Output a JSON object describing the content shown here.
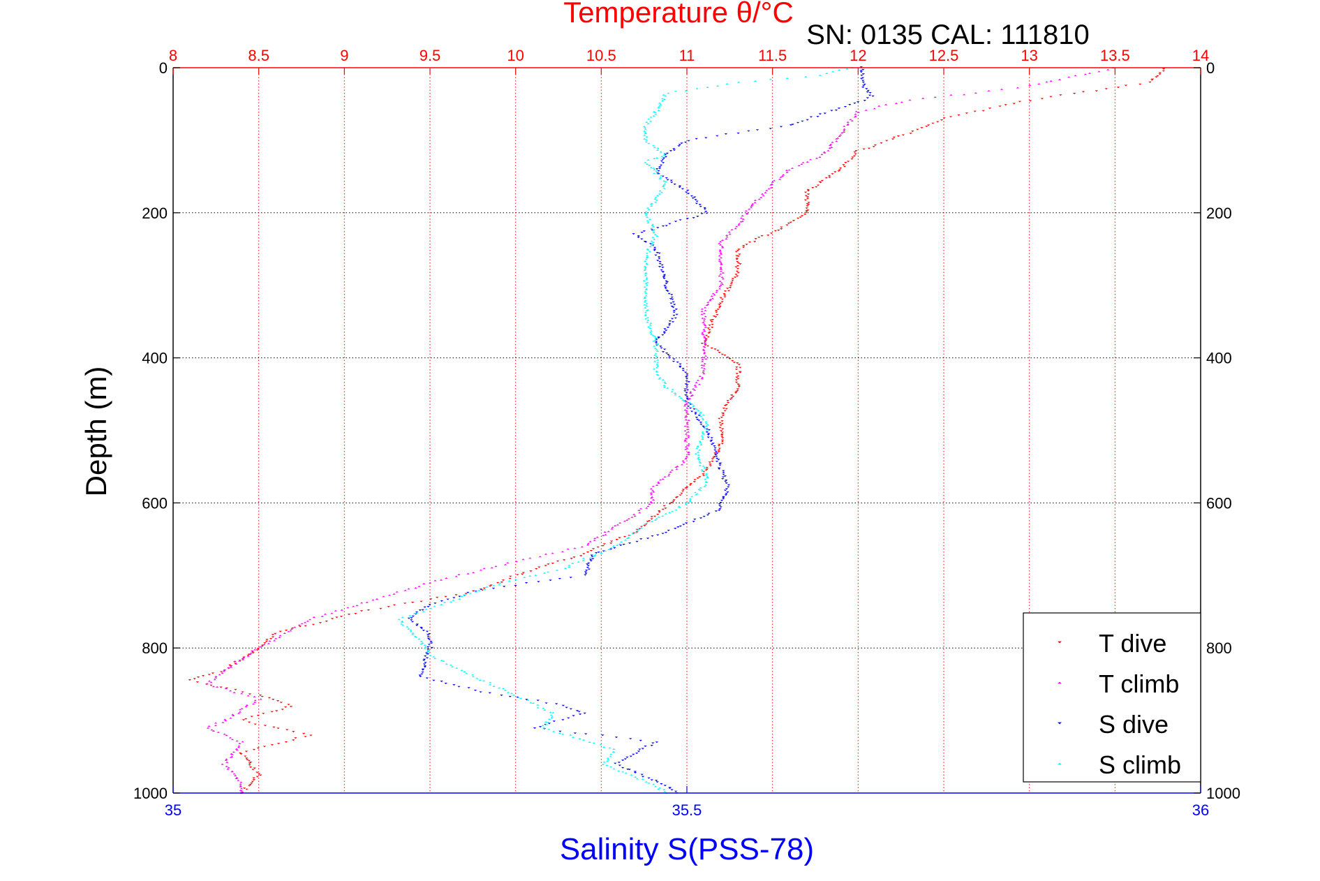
{
  "chart_data": {
    "type": "scatter",
    "title_top": "Temperature θ/°C",
    "subtitle": "SN: 0135  CAL: 111810",
    "ylabel": "Depth (m)",
    "xlabel_bottom": "Salinity S(PSS-78)",
    "y_axis": {
      "range": [
        0,
        1000
      ],
      "reversed": true,
      "ticks": [
        0,
        200,
        400,
        600,
        800,
        1000
      ]
    },
    "x_top": {
      "quantity": "Temperature",
      "range": [
        8,
        14
      ],
      "ticks": [
        8,
        8.5,
        9,
        9.5,
        10,
        10.5,
        11,
        11.5,
        12,
        12.5,
        13,
        13.5,
        14
      ],
      "color": "#ff0000"
    },
    "x_bottom": {
      "quantity": "Salinity",
      "range": [
        35,
        36
      ],
      "ticks": [
        35,
        35.5,
        36
      ],
      "color": "#0000ff"
    },
    "grid": true,
    "legend_position": "bottom-right",
    "series": [
      {
        "name": "T dive",
        "axis": "top",
        "color": "#ff0000",
        "marker": "triangle-down",
        "points": [
          [
            13.8,
            0
          ],
          [
            13.7,
            20
          ],
          [
            13.0,
            45
          ],
          [
            12.5,
            70
          ],
          [
            12.3,
            90
          ],
          [
            12.0,
            115
          ],
          [
            11.9,
            140
          ],
          [
            11.7,
            170
          ],
          [
            11.7,
            200
          ],
          [
            11.6,
            215
          ],
          [
            11.3,
            250
          ],
          [
            11.3,
            280
          ],
          [
            11.2,
            320
          ],
          [
            11.1,
            380
          ],
          [
            11.3,
            410
          ],
          [
            11.3,
            440
          ],
          [
            11.2,
            480
          ],
          [
            11.2,
            520
          ],
          [
            11.1,
            560
          ],
          [
            10.9,
            600
          ],
          [
            10.7,
            640
          ],
          [
            10.4,
            670
          ],
          [
            10.0,
            700
          ],
          [
            9.8,
            720
          ],
          [
            9.1,
            750
          ],
          [
            8.6,
            780
          ],
          [
            8.5,
            800
          ],
          [
            8.3,
            830
          ],
          [
            8.1,
            845
          ],
          [
            8.5,
            865
          ],
          [
            8.7,
            880
          ],
          [
            8.4,
            900
          ],
          [
            8.8,
            920
          ],
          [
            8.4,
            945
          ],
          [
            8.5,
            975
          ],
          [
            8.4,
            1000
          ]
        ]
      },
      {
        "name": "T climb",
        "axis": "top",
        "color": "#ff00ff",
        "marker": "triangle-up",
        "points": [
          [
            13.5,
            0
          ],
          [
            13.0,
            25
          ],
          [
            12.3,
            45
          ],
          [
            12.0,
            60
          ],
          [
            11.9,
            90
          ],
          [
            11.8,
            120
          ],
          [
            11.6,
            140
          ],
          [
            11.5,
            160
          ],
          [
            11.4,
            185
          ],
          [
            11.3,
            215
          ],
          [
            11.2,
            240
          ],
          [
            11.2,
            270
          ],
          [
            11.2,
            300
          ],
          [
            11.1,
            330
          ],
          [
            11.1,
            360
          ],
          [
            11.1,
            390
          ],
          [
            11.1,
            420
          ],
          [
            11.0,
            460
          ],
          [
            11.0,
            500
          ],
          [
            11.0,
            540
          ],
          [
            10.8,
            580
          ],
          [
            10.8,
            600
          ],
          [
            10.6,
            630
          ],
          [
            10.4,
            660
          ],
          [
            10.0,
            680
          ],
          [
            9.5,
            710
          ],
          [
            8.8,
            760
          ],
          [
            8.5,
            800
          ],
          [
            8.3,
            830
          ],
          [
            8.2,
            850
          ],
          [
            8.5,
            870
          ],
          [
            8.3,
            900
          ],
          [
            8.2,
            910
          ],
          [
            8.4,
            930
          ],
          [
            8.3,
            960
          ],
          [
            8.4,
            985
          ],
          [
            8.4,
            1000
          ]
        ]
      },
      {
        "name": "S dive",
        "axis": "bottom",
        "color": "#0000ff",
        "marker": "triangle-down",
        "points": [
          [
            35.67,
            0
          ],
          [
            35.67,
            20
          ],
          [
            35.68,
            40
          ],
          [
            35.64,
            60
          ],
          [
            35.6,
            80
          ],
          [
            35.55,
            90
          ],
          [
            35.5,
            100
          ],
          [
            35.48,
            120
          ],
          [
            35.47,
            145
          ],
          [
            35.5,
            170
          ],
          [
            35.52,
            200
          ],
          [
            35.45,
            230
          ],
          [
            35.47,
            250
          ],
          [
            35.48,
            300
          ],
          [
            35.49,
            340
          ],
          [
            35.47,
            380
          ],
          [
            35.5,
            420
          ],
          [
            35.5,
            460
          ],
          [
            35.52,
            500
          ],
          [
            35.53,
            540
          ],
          [
            35.54,
            580
          ],
          [
            35.53,
            610
          ],
          [
            35.48,
            640
          ],
          [
            35.41,
            670
          ],
          [
            35.4,
            700
          ],
          [
            35.3,
            720
          ],
          [
            35.25,
            740
          ],
          [
            35.23,
            760
          ],
          [
            35.25,
            780
          ],
          [
            35.25,
            800
          ],
          [
            35.24,
            840
          ],
          [
            35.3,
            860
          ],
          [
            35.38,
            880
          ],
          [
            35.4,
            890
          ],
          [
            35.35,
            910
          ],
          [
            35.47,
            930
          ],
          [
            35.43,
            960
          ],
          [
            35.48,
            990
          ],
          [
            35.49,
            1000
          ]
        ]
      },
      {
        "name": "S climb",
        "axis": "bottom",
        "color": "#00ffff",
        "marker": "triangle-up",
        "points": [
          [
            35.66,
            0
          ],
          [
            35.63,
            10
          ],
          [
            35.55,
            20
          ],
          [
            35.48,
            35
          ],
          [
            35.47,
            60
          ],
          [
            35.46,
            80
          ],
          [
            35.46,
            100
          ],
          [
            35.48,
            120
          ],
          [
            35.46,
            130
          ],
          [
            35.48,
            160
          ],
          [
            35.47,
            180
          ],
          [
            35.46,
            200
          ],
          [
            35.47,
            230
          ],
          [
            35.46,
            260
          ],
          [
            35.46,
            300
          ],
          [
            35.46,
            340
          ],
          [
            35.47,
            380
          ],
          [
            35.47,
            420
          ],
          [
            35.48,
            440
          ],
          [
            35.51,
            470
          ],
          [
            35.52,
            490
          ],
          [
            35.51,
            530
          ],
          [
            35.52,
            570
          ],
          [
            35.5,
            600
          ],
          [
            35.46,
            630
          ],
          [
            35.43,
            660
          ],
          [
            35.38,
            690
          ],
          [
            35.32,
            710
          ],
          [
            35.26,
            740
          ],
          [
            35.22,
            760
          ],
          [
            35.24,
            790
          ],
          [
            35.25,
            810
          ],
          [
            35.28,
            830
          ],
          [
            35.34,
            870
          ],
          [
            35.37,
            890
          ],
          [
            35.36,
            910
          ],
          [
            35.43,
            940
          ],
          [
            35.42,
            960
          ],
          [
            35.47,
            990
          ],
          [
            35.48,
            1000
          ]
        ]
      }
    ]
  }
}
